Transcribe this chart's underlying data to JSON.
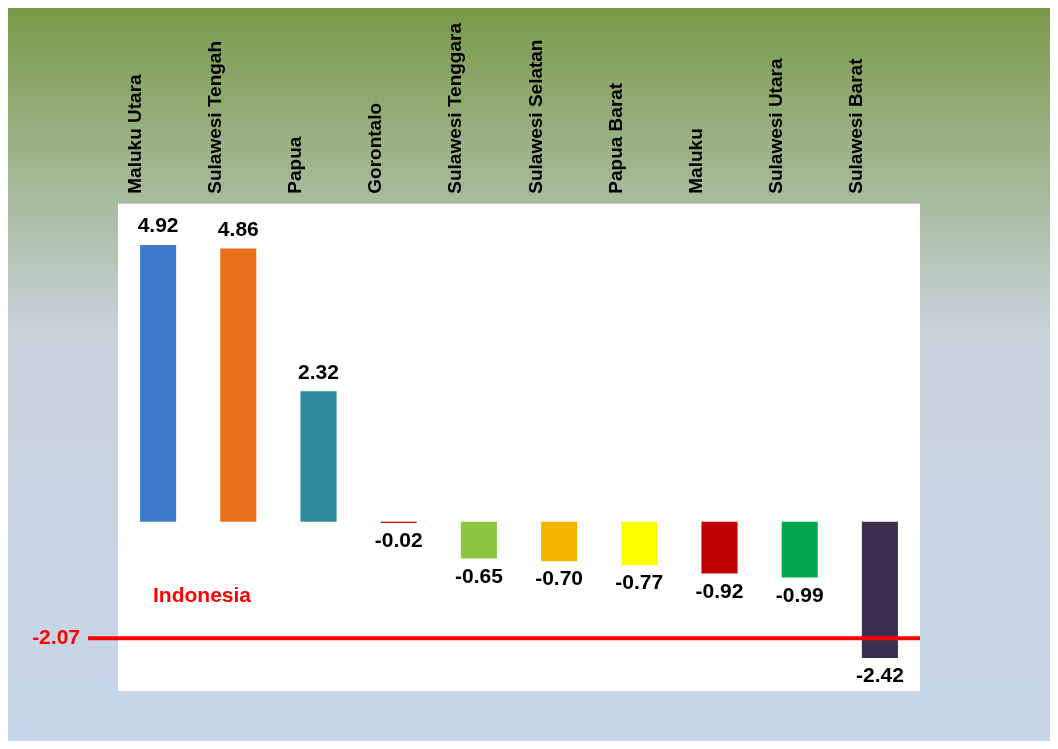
{
  "chart_data": {
    "type": "bar",
    "categories": [
      "Maluku Utara",
      "Sulawesi Tengah",
      "Papua",
      "Gorontalo",
      "Sulawesi Tenggara",
      "Sulawesi Selatan",
      "Papua Barat",
      "Maluku",
      "Sulawesi Utara",
      "Sulawesi Barat"
    ],
    "values": [
      4.92,
      4.86,
      2.32,
      -0.02,
      -0.65,
      -0.7,
      -0.77,
      -0.92,
      -0.99,
      -2.42
    ],
    "colors": [
      "#3d7cc9",
      "#e8701a",
      "#2e8a9e",
      "#cc0000",
      "#8dc63f",
      "#f4b400",
      "#ffff00",
      "#c00000",
      "#00a650",
      "#3b2f4f"
    ],
    "value_labels": [
      "4.92",
      "4.86",
      "2.32",
      "-0.02",
      "-0.65",
      "-0.70",
      "-0.77",
      "-0.92",
      "-0.99",
      "-2.42"
    ],
    "annotations": [
      "-2.07"
    ],
    "ref_lines": [
      {
        "axis": "y",
        "value": -2.07,
        "label": "Indonesia",
        "color": "#ff0000"
      }
    ],
    "grid": false,
    "legend": false
  }
}
